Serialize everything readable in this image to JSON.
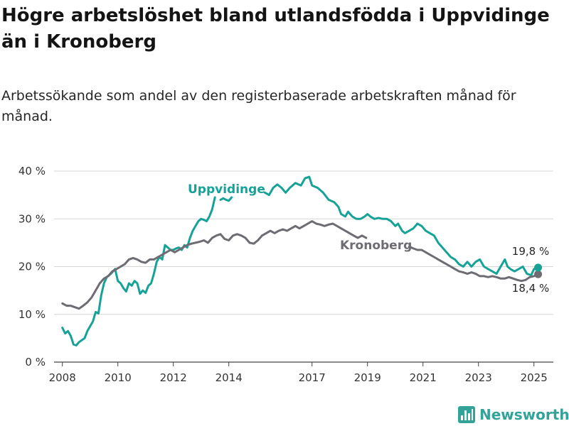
{
  "header": {
    "title": "Högre arbetslöshet bland utlandsfödda i Uppvidinge än i Kronoberg",
    "subtitle": "Arbetssökande som andel av den registerbaserade arbetskraften månad för månad."
  },
  "brand": {
    "name": "Newsworthy",
    "color": "#33a39a",
    "icon": "bar-chart-logo-icon"
  },
  "chart_data": {
    "type": "line",
    "title": "Högre arbetslöshet bland utlandsfödda i Uppvidinge än i Kronoberg",
    "subtitle": "Arbetssökande som andel av den registerbaserade arbetskraften månad för månad.",
    "xlabel": "",
    "ylabel": "",
    "xlim": [
      2007.7,
      2025.7
    ],
    "ylim": [
      0,
      40
    ],
    "x_ticks": [
      2008,
      2010,
      2012,
      2014,
      2017,
      2019,
      2021,
      2023,
      2025
    ],
    "x_tick_labels": [
      "2008",
      "2010",
      "2012",
      "2014",
      "2017",
      "2019",
      "2021",
      "2023",
      "2025"
    ],
    "y_ticks": [
      0,
      10,
      20,
      30,
      40
    ],
    "y_tick_labels": [
      "0 %",
      "10 %",
      "20 %",
      "30 %",
      "40 %"
    ],
    "grid": true,
    "legend": "inline labels",
    "series": [
      {
        "name": "Uppvidinge",
        "color": "#17a297",
        "end_label": "19,8 %",
        "points": [
          [
            2008.0,
            7.2
          ],
          [
            2008.1,
            6.0
          ],
          [
            2008.2,
            6.5
          ],
          [
            2008.3,
            5.5
          ],
          [
            2008.4,
            3.7
          ],
          [
            2008.5,
            3.5
          ],
          [
            2008.6,
            4.2
          ],
          [
            2008.8,
            5.0
          ],
          [
            2008.9,
            6.5
          ],
          [
            2009.1,
            8.5
          ],
          [
            2009.2,
            10.5
          ],
          [
            2009.3,
            10.2
          ],
          [
            2009.4,
            14.0
          ],
          [
            2009.5,
            16.5
          ],
          [
            2009.6,
            17.8
          ],
          [
            2009.75,
            18.5
          ],
          [
            2009.9,
            19.5
          ],
          [
            2010.0,
            17.0
          ],
          [
            2010.1,
            16.5
          ],
          [
            2010.2,
            15.5
          ],
          [
            2010.3,
            14.8
          ],
          [
            2010.4,
            16.5
          ],
          [
            2010.5,
            16.0
          ],
          [
            2010.6,
            17.0
          ],
          [
            2010.7,
            16.5
          ],
          [
            2010.8,
            14.3
          ],
          [
            2010.9,
            15.0
          ],
          [
            2011.0,
            14.5
          ],
          [
            2011.1,
            16.0
          ],
          [
            2011.2,
            16.5
          ],
          [
            2011.3,
            18.5
          ],
          [
            2011.4,
            21.0
          ],
          [
            2011.5,
            22.0
          ],
          [
            2011.6,
            21.5
          ],
          [
            2011.7,
            24.5
          ],
          [
            2011.8,
            24.0
          ],
          [
            2011.9,
            23.5
          ],
          [
            2012.0,
            23.5
          ],
          [
            2012.1,
            23.8
          ],
          [
            2012.2,
            24.0
          ],
          [
            2012.3,
            23.5
          ],
          [
            2012.4,
            24.5
          ],
          [
            2012.5,
            24.0
          ],
          [
            2012.6,
            26.0
          ],
          [
            2012.7,
            27.5
          ],
          [
            2012.8,
            28.5
          ],
          [
            2012.9,
            29.5
          ],
          [
            2013.0,
            30.0
          ],
          [
            2013.1,
            29.8
          ],
          [
            2013.2,
            29.5
          ],
          [
            2013.3,
            30.5
          ],
          [
            2013.4,
            32.0
          ],
          [
            2013.5,
            34.5
          ],
          null,
          [
            2013.7,
            34.0
          ],
          [
            2013.8,
            34.3
          ],
          [
            2013.9,
            34.0
          ],
          [
            2014.0,
            33.8
          ],
          [
            2014.1,
            34.5
          ],
          null,
          [
            2015.3,
            35.5
          ],
          [
            2015.45,
            35.0
          ],
          [
            2015.6,
            36.5
          ],
          [
            2015.75,
            37.2
          ],
          [
            2015.9,
            36.5
          ],
          [
            2016.05,
            35.5
          ],
          [
            2016.2,
            36.5
          ],
          [
            2016.4,
            37.5
          ],
          [
            2016.6,
            37.0
          ],
          [
            2016.75,
            38.5
          ],
          [
            2016.9,
            38.8
          ],
          [
            2017.0,
            37.0
          ],
          [
            2017.2,
            36.5
          ],
          [
            2017.4,
            35.5
          ],
          [
            2017.6,
            34.0
          ],
          [
            2017.8,
            33.5
          ],
          [
            2017.95,
            32.5
          ],
          [
            2018.05,
            31.0
          ],
          [
            2018.2,
            30.5
          ],
          [
            2018.3,
            31.5
          ],
          [
            2018.45,
            30.5
          ],
          [
            2018.6,
            30.0
          ],
          [
            2018.75,
            30.0
          ],
          [
            2018.9,
            30.5
          ],
          [
            2019.0,
            31.0
          ],
          [
            2019.1,
            30.5
          ],
          [
            2019.25,
            30.0
          ],
          [
            2019.4,
            30.2
          ],
          [
            2019.55,
            30.0
          ],
          [
            2019.7,
            30.0
          ],
          [
            2019.85,
            29.5
          ],
          [
            2020.0,
            28.5
          ],
          [
            2020.1,
            29.0
          ],
          [
            2020.25,
            27.5
          ],
          [
            2020.35,
            27.0
          ],
          [
            2020.5,
            27.5
          ],
          [
            2020.65,
            28.0
          ],
          [
            2020.8,
            29.0
          ],
          [
            2020.95,
            28.5
          ],
          [
            2021.1,
            27.5
          ],
          [
            2021.25,
            27.0
          ],
          [
            2021.4,
            26.5
          ],
          [
            2021.55,
            25.0
          ],
          [
            2021.7,
            24.0
          ],
          [
            2021.85,
            23.0
          ],
          [
            2022.0,
            22.0
          ],
          [
            2022.15,
            21.5
          ],
          [
            2022.3,
            20.5
          ],
          [
            2022.45,
            20.0
          ],
          [
            2022.6,
            21.0
          ],
          [
            2022.75,
            20.0
          ],
          [
            2022.9,
            21.0
          ],
          [
            2023.05,
            21.5
          ],
          [
            2023.2,
            20.0
          ],
          [
            2023.35,
            19.5
          ],
          [
            2023.5,
            19.0
          ],
          [
            2023.65,
            18.5
          ],
          [
            2023.8,
            20.0
          ],
          [
            2023.95,
            21.5
          ],
          [
            2024.05,
            20.0
          ],
          [
            2024.15,
            19.5
          ],
          [
            2024.3,
            19.0
          ],
          [
            2024.45,
            19.5
          ],
          [
            2024.6,
            20.0
          ],
          [
            2024.75,
            18.5
          ],
          [
            2024.9,
            18.2
          ],
          [
            2025.0,
            19.5
          ],
          [
            2025.15,
            19.8
          ]
        ]
      },
      {
        "name": "Kronoberg",
        "color": "#6e6c72",
        "end_label": "18,4 %",
        "points": [
          [
            2008.0,
            12.3
          ],
          [
            2008.15,
            11.8
          ],
          [
            2008.3,
            11.8
          ],
          [
            2008.45,
            11.5
          ],
          [
            2008.6,
            11.2
          ],
          [
            2008.75,
            11.8
          ],
          [
            2008.9,
            12.5
          ],
          [
            2009.05,
            13.5
          ],
          [
            2009.2,
            15.0
          ],
          [
            2009.35,
            16.5
          ],
          [
            2009.5,
            17.5
          ],
          [
            2009.65,
            18.0
          ],
          [
            2009.8,
            19.0
          ],
          [
            2009.95,
            19.5
          ],
          [
            2010.1,
            20.0
          ],
          [
            2010.25,
            20.5
          ],
          [
            2010.4,
            21.5
          ],
          [
            2010.55,
            21.8
          ],
          [
            2010.7,
            21.5
          ],
          [
            2010.85,
            21.0
          ],
          [
            2011.0,
            20.8
          ],
          [
            2011.15,
            21.5
          ],
          [
            2011.3,
            21.5
          ],
          [
            2011.45,
            22.0
          ],
          [
            2011.6,
            22.5
          ],
          [
            2011.75,
            23.0
          ],
          [
            2011.9,
            23.5
          ],
          [
            2012.05,
            23.0
          ],
          [
            2012.2,
            23.5
          ],
          [
            2012.35,
            24.0
          ],
          [
            2012.5,
            24.5
          ],
          [
            2012.65,
            24.8
          ],
          [
            2012.8,
            25.0
          ],
          [
            2012.95,
            25.2
          ],
          [
            2013.1,
            25.5
          ],
          [
            2013.25,
            25.0
          ],
          [
            2013.4,
            26.0
          ],
          [
            2013.55,
            26.5
          ],
          [
            2013.7,
            26.8
          ],
          [
            2013.85,
            25.8
          ],
          [
            2014.0,
            25.5
          ],
          [
            2014.15,
            26.5
          ],
          [
            2014.3,
            26.8
          ],
          [
            2014.45,
            26.5
          ],
          [
            2014.6,
            26.0
          ],
          [
            2014.75,
            25.0
          ],
          [
            2014.9,
            24.8
          ],
          [
            2015.05,
            25.5
          ],
          [
            2015.2,
            26.5
          ],
          [
            2015.35,
            27.0
          ],
          [
            2015.5,
            27.5
          ],
          [
            2015.65,
            27.0
          ],
          [
            2015.8,
            27.5
          ],
          [
            2015.95,
            27.8
          ],
          [
            2016.1,
            27.5
          ],
          [
            2016.25,
            28.0
          ],
          [
            2016.4,
            28.5
          ],
          [
            2016.55,
            28.0
          ],
          [
            2016.7,
            28.5
          ],
          [
            2016.85,
            29.0
          ],
          [
            2017.0,
            29.5
          ],
          [
            2017.15,
            29.0
          ],
          [
            2017.3,
            28.8
          ],
          [
            2017.45,
            28.5
          ],
          [
            2017.6,
            28.8
          ],
          [
            2017.75,
            29.0
          ],
          [
            2017.9,
            28.5
          ],
          [
            2018.05,
            28.0
          ],
          [
            2018.2,
            27.5
          ],
          [
            2018.35,
            27.0
          ],
          [
            2018.5,
            26.5
          ],
          [
            2018.65,
            26.0
          ],
          [
            2018.8,
            26.5
          ],
          [
            2018.95,
            26.0
          ],
          null,
          [
            2020.5,
            24.2
          ],
          [
            2020.65,
            23.8
          ],
          [
            2020.8,
            23.5
          ],
          [
            2020.95,
            23.5
          ],
          [
            2021.1,
            23.0
          ],
          [
            2021.25,
            22.5
          ],
          [
            2021.4,
            22.0
          ],
          [
            2021.55,
            21.5
          ],
          [
            2021.7,
            21.0
          ],
          [
            2021.85,
            20.5
          ],
          [
            2022.0,
            20.0
          ],
          [
            2022.15,
            19.5
          ],
          [
            2022.3,
            19.0
          ],
          [
            2022.45,
            18.8
          ],
          [
            2022.6,
            18.5
          ],
          [
            2022.75,
            18.8
          ],
          [
            2022.9,
            18.5
          ],
          [
            2023.05,
            18.0
          ],
          [
            2023.2,
            18.0
          ],
          [
            2023.35,
            17.8
          ],
          [
            2023.5,
            18.0
          ],
          [
            2023.65,
            17.8
          ],
          [
            2023.8,
            17.5
          ],
          [
            2023.95,
            17.5
          ],
          [
            2024.1,
            17.8
          ],
          [
            2024.25,
            17.5
          ],
          [
            2024.4,
            17.2
          ],
          [
            2024.55,
            17.0
          ],
          [
            2024.7,
            17.2
          ],
          [
            2024.85,
            17.8
          ],
          [
            2025.0,
            18.0
          ],
          [
            2025.15,
            18.4
          ]
        ]
      }
    ]
  }
}
